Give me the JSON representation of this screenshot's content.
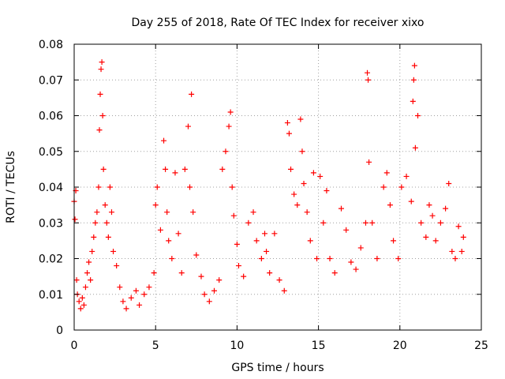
{
  "chart_data": {
    "type": "scatter",
    "title": "Day 255 of 2018, Rate Of TEC Index for receiver xixo",
    "xlabel": "GPS time / hours",
    "ylabel": "ROTI / TECUs",
    "xlim": [
      0,
      25
    ],
    "ylim": [
      0,
      0.08
    ],
    "xticks": [
      0,
      5,
      10,
      15,
      20,
      25
    ],
    "xtick_labels": [
      "0",
      "5",
      "10",
      "15",
      "20",
      "25"
    ],
    "yticks": [
      0,
      0.01,
      0.02,
      0.03,
      0.04,
      0.05,
      0.06,
      0.07,
      0.08
    ],
    "ytick_labels": [
      "0",
      "0.01",
      "0.02",
      "0.03",
      "0.04",
      "0.05",
      "0.06",
      "0.07",
      "0.08"
    ],
    "grid": true,
    "marker": "+",
    "color": "#ff0000",
    "points": [
      [
        0.0,
        0.036
      ],
      [
        0.05,
        0.031
      ],
      [
        0.1,
        0.039
      ],
      [
        0.15,
        0.014
      ],
      [
        0.2,
        0.01
      ],
      [
        0.3,
        0.008
      ],
      [
        0.4,
        0.006
      ],
      [
        0.5,
        0.009
      ],
      [
        0.6,
        0.007
      ],
      [
        0.7,
        0.012
      ],
      [
        0.8,
        0.016
      ],
      [
        0.9,
        0.019
      ],
      [
        1.0,
        0.014
      ],
      [
        1.1,
        0.022
      ],
      [
        1.2,
        0.026
      ],
      [
        1.3,
        0.03
      ],
      [
        1.4,
        0.033
      ],
      [
        1.5,
        0.04
      ],
      [
        1.55,
        0.056
      ],
      [
        1.6,
        0.066
      ],
      [
        1.65,
        0.073
      ],
      [
        1.7,
        0.075
      ],
      [
        1.75,
        0.06
      ],
      [
        1.8,
        0.045
      ],
      [
        1.9,
        0.035
      ],
      [
        2.0,
        0.03
      ],
      [
        2.1,
        0.026
      ],
      [
        2.2,
        0.04
      ],
      [
        2.3,
        0.033
      ],
      [
        2.4,
        0.022
      ],
      [
        2.6,
        0.018
      ],
      [
        2.8,
        0.012
      ],
      [
        3.0,
        0.008
      ],
      [
        3.2,
        0.006
      ],
      [
        3.5,
        0.009
      ],
      [
        3.8,
        0.011
      ],
      [
        4.0,
        0.007
      ],
      [
        4.3,
        0.01
      ],
      [
        4.6,
        0.012
      ],
      [
        4.9,
        0.016
      ],
      [
        5.0,
        0.035
      ],
      [
        5.1,
        0.04
      ],
      [
        5.3,
        0.028
      ],
      [
        5.5,
        0.053
      ],
      [
        5.6,
        0.045
      ],
      [
        5.7,
        0.033
      ],
      [
        5.8,
        0.025
      ],
      [
        6.0,
        0.02
      ],
      [
        6.2,
        0.044
      ],
      [
        6.4,
        0.027
      ],
      [
        6.6,
        0.016
      ],
      [
        6.8,
        0.045
      ],
      [
        7.0,
        0.057
      ],
      [
        7.1,
        0.04
      ],
      [
        7.2,
        0.066
      ],
      [
        7.3,
        0.033
      ],
      [
        7.5,
        0.021
      ],
      [
        7.8,
        0.015
      ],
      [
        8.0,
        0.01
      ],
      [
        8.3,
        0.008
      ],
      [
        8.6,
        0.011
      ],
      [
        8.9,
        0.014
      ],
      [
        9.1,
        0.045
      ],
      [
        9.3,
        0.05
      ],
      [
        9.5,
        0.057
      ],
      [
        9.6,
        0.061
      ],
      [
        9.7,
        0.04
      ],
      [
        9.8,
        0.032
      ],
      [
        10.0,
        0.024
      ],
      [
        10.1,
        0.018
      ],
      [
        10.4,
        0.015
      ],
      [
        10.7,
        0.03
      ],
      [
        11.0,
        0.033
      ],
      [
        11.2,
        0.025
      ],
      [
        11.5,
        0.02
      ],
      [
        11.7,
        0.027
      ],
      [
        11.8,
        0.022
      ],
      [
        12.0,
        0.016
      ],
      [
        12.3,
        0.027
      ],
      [
        12.6,
        0.014
      ],
      [
        12.9,
        0.011
      ],
      [
        13.1,
        0.058
      ],
      [
        13.2,
        0.055
      ],
      [
        13.3,
        0.045
      ],
      [
        13.5,
        0.038
      ],
      [
        13.7,
        0.035
      ],
      [
        13.9,
        0.059
      ],
      [
        14.0,
        0.05
      ],
      [
        14.1,
        0.041
      ],
      [
        14.3,
        0.033
      ],
      [
        14.5,
        0.025
      ],
      [
        14.7,
        0.044
      ],
      [
        14.9,
        0.02
      ],
      [
        15.1,
        0.043
      ],
      [
        15.3,
        0.03
      ],
      [
        15.5,
        0.039
      ],
      [
        15.7,
        0.02
      ],
      [
        16.0,
        0.016
      ],
      [
        16.4,
        0.034
      ],
      [
        16.7,
        0.028
      ],
      [
        17.0,
        0.019
      ],
      [
        17.3,
        0.017
      ],
      [
        17.6,
        0.023
      ],
      [
        17.9,
        0.03
      ],
      [
        18.0,
        0.072
      ],
      [
        18.05,
        0.07
      ],
      [
        18.1,
        0.047
      ],
      [
        18.3,
        0.03
      ],
      [
        18.6,
        0.02
      ],
      [
        19.0,
        0.04
      ],
      [
        19.2,
        0.044
      ],
      [
        19.4,
        0.035
      ],
      [
        19.6,
        0.025
      ],
      [
        19.9,
        0.02
      ],
      [
        20.1,
        0.04
      ],
      [
        20.4,
        0.043
      ],
      [
        20.7,
        0.036
      ],
      [
        20.8,
        0.064
      ],
      [
        20.85,
        0.07
      ],
      [
        20.9,
        0.074
      ],
      [
        20.95,
        0.051
      ],
      [
        21.1,
        0.06
      ],
      [
        21.3,
        0.03
      ],
      [
        21.6,
        0.026
      ],
      [
        21.8,
        0.035
      ],
      [
        22.0,
        0.032
      ],
      [
        22.2,
        0.025
      ],
      [
        22.5,
        0.03
      ],
      [
        22.8,
        0.034
      ],
      [
        23.0,
        0.041
      ],
      [
        23.2,
        0.022
      ],
      [
        23.4,
        0.02
      ],
      [
        23.6,
        0.029
      ],
      [
        23.8,
        0.022
      ],
      [
        23.9,
        0.026
      ]
    ]
  }
}
